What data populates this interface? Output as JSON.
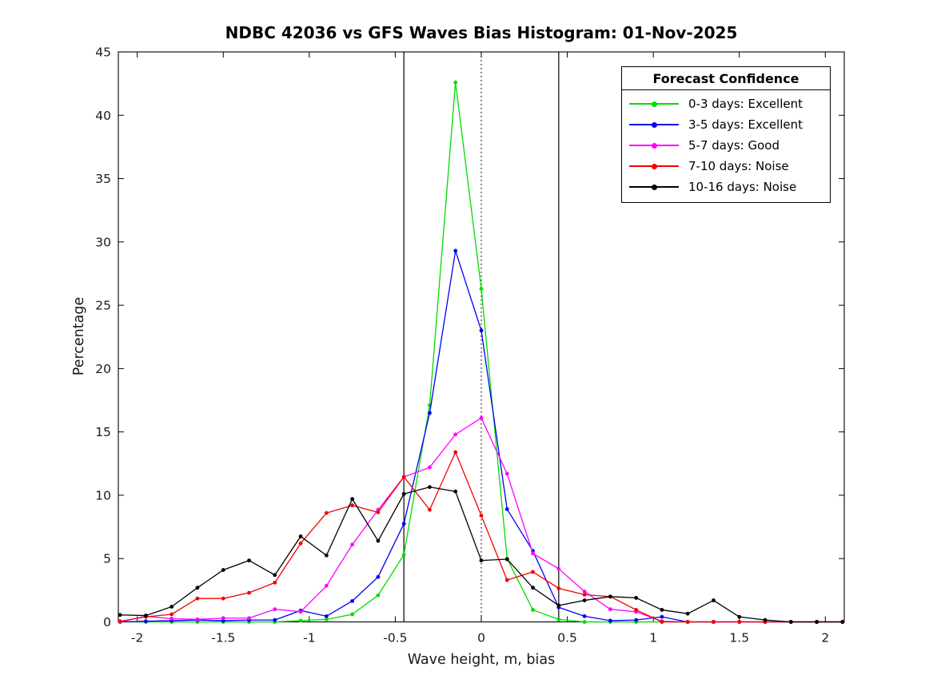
{
  "legend": {
    "title": "Forecast Confidence"
  },
  "chart_data": {
    "type": "line",
    "title": "NDBC 42036 vs GFS Waves Bias Histogram: 01-Nov-2025",
    "xlabel": "Wave height, m, bias",
    "ylabel": "Percentage",
    "xlim": [
      -2.11,
      2.11
    ],
    "ylim": [
      0,
      45
    ],
    "xticks": [
      -2,
      -1.5,
      -1,
      -0.5,
      0,
      0.5,
      1,
      1.5,
      2
    ],
    "yticks": [
      0,
      5,
      10,
      15,
      20,
      25,
      30,
      35,
      40,
      45
    ],
    "grid": false,
    "legend_position": "top-right",
    "marker": "dot",
    "x": [
      -2.1,
      -1.95,
      -1.8,
      -1.65,
      -1.5,
      -1.35,
      -1.2,
      -1.05,
      -0.9,
      -0.75,
      -0.6,
      -0.45,
      -0.3,
      -0.15,
      0,
      0.15,
      0.3,
      0.45,
      0.6,
      0.75,
      0.9,
      1.05,
      1.2,
      1.35,
      1.5,
      1.65,
      1.8,
      1.95,
      2.1
    ],
    "series": [
      {
        "name": "0-3 days: Excellent",
        "color": "#00DC00",
        "values": [
          0,
          0,
          0,
          0,
          0,
          0,
          0,
          0.1,
          0.2,
          0.6,
          2.1,
          5.3,
          17.1,
          42.6,
          26.3,
          5.0,
          0.95,
          0.2,
          0,
          0,
          0,
          0,
          0,
          0,
          0,
          0,
          0,
          0,
          0
        ]
      },
      {
        "name": "3-5 days: Excellent",
        "color": "#0000F5",
        "values": [
          0,
          0.05,
          0.1,
          0.15,
          0.1,
          0.15,
          0.15,
          0.9,
          0.45,
          1.65,
          3.55,
          7.75,
          16.5,
          29.3,
          23.0,
          8.9,
          5.6,
          1.15,
          0.45,
          0.1,
          0.15,
          0.4,
          0,
          0,
          0,
          0,
          0,
          0,
          0
        ]
      },
      {
        "name": "5-7 days: Good",
        "color": "#FF00FF",
        "values": [
          0,
          0.45,
          0.25,
          0.2,
          0.3,
          0.3,
          1.0,
          0.8,
          2.85,
          6.1,
          8.85,
          11.45,
          12.2,
          14.8,
          16.1,
          11.7,
          5.4,
          4.2,
          2.4,
          1.0,
          0.8,
          0.05,
          0,
          0,
          0,
          0,
          0,
          0,
          0
        ]
      },
      {
        "name": "7-10 days: Noise",
        "color": "#F40000",
        "values": [
          0.05,
          0.4,
          0.6,
          1.85,
          1.85,
          2.3,
          3.1,
          6.2,
          8.6,
          9.2,
          8.65,
          11.45,
          8.85,
          13.4,
          8.4,
          3.3,
          3.95,
          2.65,
          2.15,
          2.0,
          0.95,
          0,
          0,
          0,
          0,
          0,
          0,
          0,
          0
        ]
      },
      {
        "name": "10-16 days: Noise",
        "color": "#000000",
        "values": [
          0.55,
          0.5,
          1.2,
          2.7,
          4.1,
          4.85,
          3.7,
          6.75,
          5.25,
          9.7,
          6.4,
          10.1,
          10.65,
          10.3,
          4.85,
          4.95,
          2.7,
          1.3,
          1.7,
          2.0,
          1.9,
          0.95,
          0.65,
          1.7,
          0.4,
          0.15,
          0,
          0,
          0
        ]
      }
    ],
    "reference_lines": [
      {
        "x": -0.45,
        "style": "solid",
        "color": "#000000"
      },
      {
        "x": 0,
        "style": "dotted",
        "color": "#000000"
      },
      {
        "x": 0.45,
        "style": "solid",
        "color": "#000000"
      }
    ]
  }
}
